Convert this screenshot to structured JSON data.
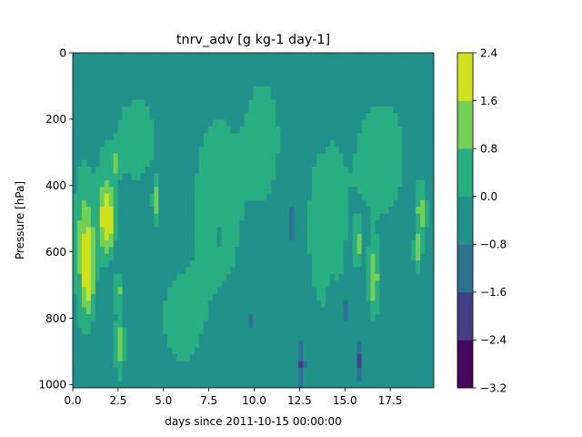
{
  "chart_data": {
    "type": "heatmap",
    "title": "tnrv_adv [g kg-1 day-1]",
    "xlabel": "days since 2011-10-15 00:00:00",
    "ylabel": "Pressure [hPa]",
    "xlim": [
      0,
      19.9
    ],
    "ylim": [
      1010,
      0
    ],
    "x_ticks": [
      0.0,
      2.5,
      5.0,
      7.5,
      10.0,
      12.5,
      15.0,
      17.5
    ],
    "x_tick_labels": [
      "0.0",
      "2.5",
      "5.0",
      "7.5",
      "10.0",
      "12.5",
      "15.0",
      "17.5"
    ],
    "y_ticks": [
      0,
      200,
      400,
      600,
      800,
      1000
    ],
    "y_tick_labels": [
      "0",
      "200",
      "400",
      "600",
      "800",
      "1000"
    ],
    "colorbar": {
      "levels": [
        -3.2,
        -2.4,
        -1.6,
        -0.8,
        0.0,
        0.8,
        1.6,
        2.4
      ],
      "tick_labels": [
        "−3.2",
        "−2.4",
        "−1.6",
        "−0.8",
        "0.0",
        "0.8",
        "1.6",
        "2.4"
      ],
      "colors": [
        "#46085c",
        "#433e85",
        "#2c728e",
        "#21918c",
        "#28ae80",
        "#73d056",
        "#d0e11c"
      ]
    },
    "background_value": -0.4,
    "features": [
      {
        "x": 0.9,
        "y": 650,
        "rx": 0.3,
        "ry": 120,
        "value": 2.0
      },
      {
        "x": 0.6,
        "y": 580,
        "rx": 0.5,
        "ry": 220,
        "value": 1.2
      },
      {
        "x": 1.9,
        "y": 510,
        "rx": 0.3,
        "ry": 70,
        "value": 1.8
      },
      {
        "x": 1.8,
        "y": 470,
        "rx": 0.5,
        "ry": 150,
        "value": 1.2
      },
      {
        "x": 2.5,
        "y": 720,
        "rx": 0.2,
        "ry": 50,
        "value": 1.2
      },
      {
        "x": 2.6,
        "y": 880,
        "rx": 0.25,
        "ry": 90,
        "value": 1.2
      },
      {
        "x": 2.4,
        "y": 330,
        "rx": 0.2,
        "ry": 40,
        "value": 1.2
      },
      {
        "x": 4.6,
        "y": 450,
        "rx": 0.2,
        "ry": 60,
        "value": 1.2
      },
      {
        "x": 16.6,
        "y": 680,
        "rx": 0.3,
        "ry": 100,
        "value": 1.4
      },
      {
        "x": 15.7,
        "y": 580,
        "rx": 0.2,
        "ry": 60,
        "value": 1.2
      },
      {
        "x": 19.2,
        "y": 480,
        "rx": 0.3,
        "ry": 80,
        "value": 1.2
      },
      {
        "x": 19.0,
        "y": 600,
        "rx": 0.2,
        "ry": 50,
        "value": 1.2
      },
      {
        "x": 3.5,
        "y": 260,
        "rx": 1.2,
        "ry": 140,
        "value": 0.4
      },
      {
        "x": 8.0,
        "y": 450,
        "rx": 1.5,
        "ry": 300,
        "value": 0.4
      },
      {
        "x": 10.5,
        "y": 260,
        "rx": 1.0,
        "ry": 200,
        "value": 0.4
      },
      {
        "x": 14.0,
        "y": 520,
        "rx": 1.2,
        "ry": 300,
        "value": 0.4
      },
      {
        "x": 17.0,
        "y": 320,
        "rx": 1.5,
        "ry": 200,
        "value": 0.4
      },
      {
        "x": 6.0,
        "y": 800,
        "rx": 1.2,
        "ry": 150,
        "value": 0.4
      },
      {
        "x": 12.1,
        "y": 520,
        "rx": 0.2,
        "ry": 60,
        "value": -1.4
      },
      {
        "x": 12.6,
        "y": 940,
        "rx": 0.2,
        "ry": 60,
        "value": -1.8
      },
      {
        "x": 15.8,
        "y": 930,
        "rx": 0.2,
        "ry": 50,
        "value": -1.8
      },
      {
        "x": 14.3,
        "y": 720,
        "rx": 0.2,
        "ry": 50,
        "value": -1.2
      },
      {
        "x": 15.0,
        "y": 780,
        "rx": 0.2,
        "ry": 50,
        "value": -1.2
      },
      {
        "x": 6.1,
        "y": 570,
        "rx": 0.2,
        "ry": 50,
        "value": -1.0
      },
      {
        "x": 8.1,
        "y": 550,
        "rx": 0.15,
        "ry": 40,
        "value": -1.0
      },
      {
        "x": 9.9,
        "y": 800,
        "rx": 0.2,
        "ry": 50,
        "value": -1.0
      },
      {
        "x": 13.8,
        "y": 240,
        "rx": 0.2,
        "ry": 40,
        "value": -1.0
      }
    ]
  }
}
